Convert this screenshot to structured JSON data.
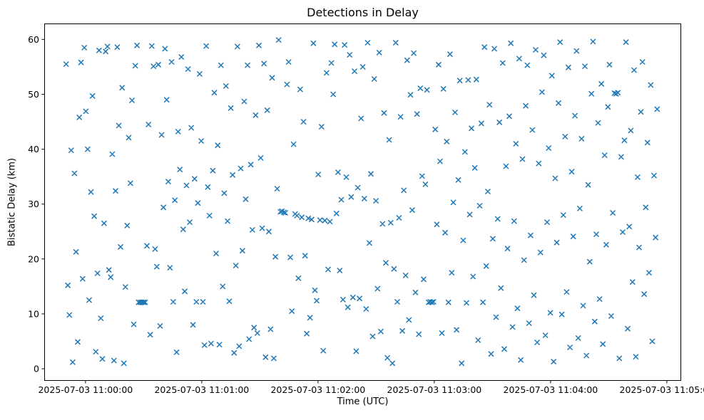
{
  "figure": {
    "title": "Detections in Delay",
    "xlabel": "Time (UTC)",
    "ylabel": "Bistatic Delay (km)"
  },
  "chart_data": {
    "type": "scatter",
    "title": "Detections in Delay",
    "xlabel": "Time (UTC)",
    "ylabel": "Bistatic Delay (km)",
    "x_unit": "seconds since 2025-07-03 11:00:00 UTC",
    "xlim_seconds": [
      -21.3,
      307.4
    ],
    "ylim": [
      -2.2,
      62.9
    ],
    "x_ticks": [
      {
        "t": 0,
        "label": "2025-07-03 11:00:00"
      },
      {
        "t": 60,
        "label": "2025-07-03 11:01:00"
      },
      {
        "t": 120,
        "label": "2025-07-03 11:02:00"
      },
      {
        "t": 180,
        "label": "2025-07-03 11:03:00"
      },
      {
        "t": 240,
        "label": "2025-07-03 11:04:00"
      },
      {
        "t": 300,
        "label": "2025-07-03 11:05:00"
      }
    ],
    "y_ticks": [
      0,
      10,
      20,
      30,
      40,
      50,
      60
    ],
    "grid": false,
    "legend": null,
    "marker": {
      "symbol": "x",
      "color": "#1f77b4",
      "size": 7,
      "stroke_width": 1.5
    },
    "points": [
      [
        -10,
        55.5
      ],
      [
        -9.1,
        15.2
      ],
      [
        -8.3,
        9.8
      ],
      [
        -7.4,
        39.8
      ],
      [
        -6.6,
        1.2
      ],
      [
        -5.7,
        35.6
      ],
      [
        -4.9,
        21.3
      ],
      [
        -4,
        4.9
      ],
      [
        -3.2,
        45.8
      ],
      [
        -2.3,
        55.8
      ],
      [
        -1.5,
        16.4
      ],
      [
        -0.6,
        58.5
      ],
      [
        0.2,
        46.9
      ],
      [
        1.1,
        40.0
      ],
      [
        1.9,
        12.5
      ],
      [
        2.8,
        32.2
      ],
      [
        3.6,
        49.7
      ],
      [
        4.5,
        27.8
      ],
      [
        5.3,
        3.1
      ],
      [
        6.2,
        17.4
      ],
      [
        7,
        58
      ],
      [
        7.9,
        9.2
      ],
      [
        8.7,
        1.8
      ],
      [
        9.6,
        26.5
      ],
      [
        10.4,
        57.8
      ],
      [
        11.3,
        58.7
      ],
      [
        12.1,
        18
      ],
      [
        13,
        16.7
      ],
      [
        13.8,
        39.1
      ],
      [
        14.7,
        1.5
      ],
      [
        15.5,
        32.4
      ],
      [
        16.4,
        58.6
      ],
      [
        17.2,
        44.3
      ],
      [
        18.1,
        22.2
      ],
      [
        18.9,
        51.2
      ],
      [
        19.8,
        1
      ],
      [
        20.6,
        14.9
      ],
      [
        21.5,
        26.1
      ],
      [
        22.3,
        42.1
      ],
      [
        23.2,
        33.8
      ],
      [
        24,
        48.9
      ],
      [
        24.9,
        8.1
      ],
      [
        25.7,
        55.2
      ],
      [
        26.6,
        58.9
      ],
      [
        27.4,
        12.1
      ],
      [
        28.3,
        12.1
      ],
      [
        29.1,
        12.1
      ],
      [
        30,
        12.1
      ],
      [
        30.8,
        12.1
      ],
      [
        31.7,
        22.4
      ],
      [
        32.5,
        44.5
      ],
      [
        33.4,
        6.2
      ],
      [
        34.2,
        58.8
      ],
      [
        35.1,
        55.1
      ],
      [
        35.9,
        21.8
      ],
      [
        36.8,
        18.6
      ],
      [
        37.6,
        55.4
      ],
      [
        38.5,
        7.8
      ],
      [
        39.3,
        42.6
      ],
      [
        40.2,
        29.4
      ],
      [
        41,
        58.3
      ],
      [
        41.9,
        49
      ],
      [
        42.7,
        34.1
      ],
      [
        43.6,
        18.4
      ],
      [
        44.4,
        55.9
      ],
      [
        45.3,
        12.2
      ],
      [
        46.1,
        30.7
      ],
      [
        47,
        3
      ],
      [
        47.8,
        43.2
      ],
      [
        48.7,
        36.3
      ],
      [
        49.5,
        56.8
      ],
      [
        50.4,
        25.4
      ],
      [
        51.2,
        14.1
      ],
      [
        52.1,
        33.4
      ],
      [
        52.9,
        54.6
      ],
      [
        53.8,
        26.7
      ],
      [
        54.6,
        43.9
      ],
      [
        55.5,
        8
      ],
      [
        56.3,
        34.6
      ],
      [
        57.2,
        12.2
      ],
      [
        58,
        30.2
      ],
      [
        58.9,
        53.7
      ],
      [
        59.7,
        41.5
      ],
      [
        60.6,
        12.2
      ],
      [
        61.4,
        4.3
      ],
      [
        62.3,
        58.8
      ],
      [
        63.1,
        33.1
      ],
      [
        64,
        27.9
      ],
      [
        64.8,
        4.6
      ],
      [
        65.7,
        36.1
      ],
      [
        66.5,
        50.3
      ],
      [
        67.4,
        21
      ],
      [
        68.2,
        40.7
      ],
      [
        69.1,
        4.4
      ],
      [
        69.9,
        55.3
      ],
      [
        70.8,
        15
      ],
      [
        71.6,
        32
      ],
      [
        72.5,
        51.5
      ],
      [
        73.3,
        26.9
      ],
      [
        74.2,
        12.3
      ],
      [
        75,
        47.5
      ],
      [
        75.9,
        35.3
      ],
      [
        76.7,
        2.9
      ],
      [
        77.6,
        18.8
      ],
      [
        78.4,
        58.7
      ],
      [
        79.3,
        4.1
      ],
      [
        80.1,
        36.5
      ],
      [
        81,
        21.5
      ],
      [
        81.9,
        48.7
      ],
      [
        82.7,
        30.9
      ],
      [
        83.6,
        55.3
      ],
      [
        84.4,
        5.4
      ],
      [
        85.3,
        37.2
      ],
      [
        86.1,
        25.3
      ],
      [
        87,
        7.5
      ],
      [
        87.8,
        46.2
      ],
      [
        88.7,
        6.5
      ],
      [
        89.5,
        58.9
      ],
      [
        90.4,
        38.4
      ],
      [
        91.2,
        25.6
      ],
      [
        92.1,
        55.6
      ],
      [
        92.9,
        2.1
      ],
      [
        93.8,
        47.1
      ],
      [
        94.6,
        25
      ],
      [
        95.5,
        7.2
      ],
      [
        96.3,
        53
      ],
      [
        97.2,
        1.9
      ],
      [
        98,
        20.4
      ],
      [
        98.9,
        32.8
      ],
      [
        99.7,
        59.9
      ],
      [
        100.6,
        28.6
      ],
      [
        101.4,
        28.7
      ],
      [
        102.3,
        28.5
      ],
      [
        103.1,
        28.4
      ],
      [
        104,
        51.8
      ],
      [
        104.8,
        55.9
      ],
      [
        105.7,
        20.3
      ],
      [
        106.5,
        10.5
      ],
      [
        107.4,
        40.9
      ],
      [
        108.2,
        28.2
      ],
      [
        109.1,
        27.9
      ],
      [
        109.9,
        16.5
      ],
      [
        110.8,
        50.9
      ],
      [
        111.6,
        27.6
      ],
      [
        112.5,
        45
      ],
      [
        113.3,
        20.6
      ],
      [
        114.2,
        6.4
      ],
      [
        115,
        27.4
      ],
      [
        115.9,
        9.3
      ],
      [
        116.7,
        27.2
      ],
      [
        117.6,
        59.3
      ],
      [
        118.4,
        14.3
      ],
      [
        119.3,
        12.4
      ],
      [
        120.1,
        35.4
      ],
      [
        121,
        27.1
      ],
      [
        121.8,
        44.1
      ],
      [
        122.7,
        3.3
      ],
      [
        123.5,
        27
      ],
      [
        124.4,
        53.9
      ],
      [
        125.2,
        18.1
      ],
      [
        126.1,
        26.8
      ],
      [
        126.9,
        55.7
      ],
      [
        127.8,
        50
      ],
      [
        128.6,
        59.1
      ],
      [
        129.5,
        28.3
      ],
      [
        130.3,
        35.8
      ],
      [
        131.2,
        17.9
      ],
      [
        132,
        30.8
      ],
      [
        132.9,
        12.6
      ],
      [
        133.7,
        59
      ],
      [
        134.6,
        34.9
      ],
      [
        135.4,
        11.2
      ],
      [
        136.3,
        57.2
      ],
      [
        137.1,
        31.3
      ],
      [
        138,
        13
      ],
      [
        138.8,
        54.2
      ],
      [
        139.7,
        3.2
      ],
      [
        140.5,
        33
      ],
      [
        141.4,
        12.8
      ],
      [
        142.2,
        45.6
      ],
      [
        143.1,
        55
      ],
      [
        143.9,
        31
      ],
      [
        144.8,
        10.9
      ],
      [
        145.6,
        59.4
      ],
      [
        146.5,
        22.9
      ],
      [
        147.3,
        35.5
      ],
      [
        148.2,
        5.9
      ],
      [
        149,
        52.8
      ],
      [
        149.9,
        30.6
      ],
      [
        150.7,
        14.6
      ],
      [
        151.6,
        57.6
      ],
      [
        152.4,
        6.8
      ],
      [
        153.3,
        26.4
      ],
      [
        154.1,
        46.6
      ],
      [
        155,
        19.3
      ],
      [
        155.8,
        2
      ],
      [
        156.7,
        41.7
      ],
      [
        157.5,
        26.6
      ],
      [
        158.4,
        1
      ],
      [
        159.2,
        18.2
      ],
      [
        160.1,
        59.4
      ],
      [
        160.9,
        12.2
      ],
      [
        161.8,
        27.5
      ],
      [
        162.6,
        45.9
      ],
      [
        163.5,
        6.9
      ],
      [
        164.3,
        32.5
      ],
      [
        165.2,
        17
      ],
      [
        166,
        56.2
      ],
      [
        166.9,
        8.9
      ],
      [
        167.7,
        49.9
      ],
      [
        168.6,
        28.9
      ],
      [
        169.4,
        57.5
      ],
      [
        170.3,
        13.9
      ],
      [
        171.1,
        46.4
      ],
      [
        172,
        6.3
      ],
      [
        172.8,
        51.1
      ],
      [
        173.7,
        35.1
      ],
      [
        174.5,
        16.3
      ],
      [
        175.4,
        33.6
      ],
      [
        176.2,
        50.8
      ],
      [
        177.1,
        12.1
      ],
      [
        177.9,
        12.2
      ],
      [
        178.8,
        12.1
      ],
      [
        179.6,
        12.2
      ],
      [
        180.5,
        43.6
      ],
      [
        181.3,
        26.3
      ],
      [
        182.2,
        55.4
      ],
      [
        183,
        37.8
      ],
      [
        183.9,
        6.5
      ],
      [
        184.7,
        51
      ],
      [
        185.6,
        24.8
      ],
      [
        186.4,
        41.4
      ],
      [
        187.3,
        12.1
      ],
      [
        188.1,
        57.3
      ],
      [
        189,
        17.5
      ],
      [
        189.8,
        30.3
      ],
      [
        190.7,
        46.7
      ],
      [
        191.5,
        7.1
      ],
      [
        192.4,
        34.4
      ],
      [
        193.2,
        52.5
      ],
      [
        194.1,
        1
      ],
      [
        194.9,
        23.4
      ],
      [
        195.8,
        39.5
      ],
      [
        196.6,
        12
      ],
      [
        197.5,
        52.6
      ],
      [
        198.3,
        28.1
      ],
      [
        199.2,
        43.8
      ],
      [
        200,
        16.8
      ],
      [
        200.9,
        36.6
      ],
      [
        201.7,
        52.7
      ],
      [
        202.6,
        5.2
      ],
      [
        203.4,
        29.7
      ],
      [
        204.3,
        44.7
      ],
      [
        205.1,
        12.1
      ],
      [
        205.9,
        58.6
      ],
      [
        206.8,
        18.7
      ],
      [
        207.6,
        32.3
      ],
      [
        208.5,
        48.1
      ],
      [
        209.3,
        2.7
      ],
      [
        210.2,
        23.7
      ],
      [
        211,
        58.3
      ],
      [
        211.9,
        9.4
      ],
      [
        212.7,
        27.3
      ],
      [
        213.6,
        44.9
      ],
      [
        214.4,
        14.7
      ],
      [
        215.3,
        55.7
      ],
      [
        216.1,
        3.6
      ],
      [
        217,
        36.9
      ],
      [
        217.8,
        21.9
      ],
      [
        218.7,
        46
      ],
      [
        219.5,
        59.3
      ],
      [
        220.4,
        7.6
      ],
      [
        221.2,
        26.9
      ],
      [
        222.1,
        41
      ],
      [
        222.9,
        11
      ],
      [
        223.8,
        56.5
      ],
      [
        224.6,
        1.6
      ],
      [
        225.5,
        38.2
      ],
      [
        226.3,
        19.8
      ],
      [
        227.2,
        47.9
      ],
      [
        228,
        55.3
      ],
      [
        228.9,
        8.3
      ],
      [
        229.7,
        24.3
      ],
      [
        230.6,
        43.5
      ],
      [
        231.4,
        13.4
      ],
      [
        232.3,
        58.1
      ],
      [
        233.1,
        4.8
      ],
      [
        233.9,
        37.4
      ],
      [
        234.8,
        21.2
      ],
      [
        235.6,
        50.4
      ],
      [
        236.5,
        57.1
      ],
      [
        237.3,
        6.1
      ],
      [
        238.2,
        26.7
      ],
      [
        239,
        40.2
      ],
      [
        239.9,
        10.2
      ],
      [
        240.7,
        53.4
      ],
      [
        241.6,
        1.3
      ],
      [
        242.4,
        34.7
      ],
      [
        243.2,
        23
      ],
      [
        244.1,
        48.4
      ],
      [
        244.9,
        59.5
      ],
      [
        245.8,
        9.9
      ],
      [
        246.6,
        28
      ],
      [
        247.5,
        42.3
      ],
      [
        248.3,
        14
      ],
      [
        249.2,
        54.9
      ],
      [
        250,
        3.9
      ],
      [
        250.9,
        35.9
      ],
      [
        251.7,
        24.1
      ],
      [
        252.6,
        46.1
      ],
      [
        253.4,
        57.9
      ],
      [
        254.3,
        5.6
      ],
      [
        255.1,
        29.2
      ],
      [
        256,
        41.9
      ],
      [
        256.8,
        11.5
      ],
      [
        257.7,
        55.1
      ],
      [
        258.5,
        2.4
      ],
      [
        259.4,
        33.5
      ],
      [
        260.2,
        19.5
      ],
      [
        261.1,
        50.1
      ],
      [
        261.9,
        59.6
      ],
      [
        262.8,
        8.6
      ],
      [
        263.6,
        24.5
      ],
      [
        264.5,
        44.8
      ],
      [
        265.3,
        12.7
      ],
      [
        266.2,
        51.9
      ],
      [
        267,
        4.5
      ],
      [
        267.9,
        38.9
      ],
      [
        268.7,
        22.6
      ],
      [
        269.6,
        47.7
      ],
      [
        270.4,
        55.4
      ],
      [
        271.3,
        9.6
      ],
      [
        272.1,
        28.4
      ],
      [
        273,
        50.2
      ],
      [
        273.8,
        50.1
      ],
      [
        274.7,
        50.3
      ],
      [
        275.5,
        1.9
      ],
      [
        276.4,
        38.6
      ],
      [
        277.2,
        24.9
      ],
      [
        278.1,
        41.6
      ],
      [
        278.9,
        59.5
      ],
      [
        279.8,
        7.3
      ],
      [
        280.6,
        25.9
      ],
      [
        281.4,
        43.4
      ],
      [
        282.3,
        15.8
      ],
      [
        283.1,
        54.4
      ],
      [
        284,
        2.2
      ],
      [
        284.9,
        34.9
      ],
      [
        285.7,
        22.1
      ],
      [
        286.6,
        46.8
      ],
      [
        287.4,
        55.9
      ],
      [
        288.3,
        13.6
      ],
      [
        289.1,
        29.4
      ],
      [
        290,
        41.2
      ],
      [
        290.8,
        17.5
      ],
      [
        291.7,
        51.7
      ],
      [
        292.5,
        5
      ],
      [
        293.4,
        35.2
      ],
      [
        294.2,
        23.9
      ],
      [
        295,
        47.3
      ]
    ]
  }
}
